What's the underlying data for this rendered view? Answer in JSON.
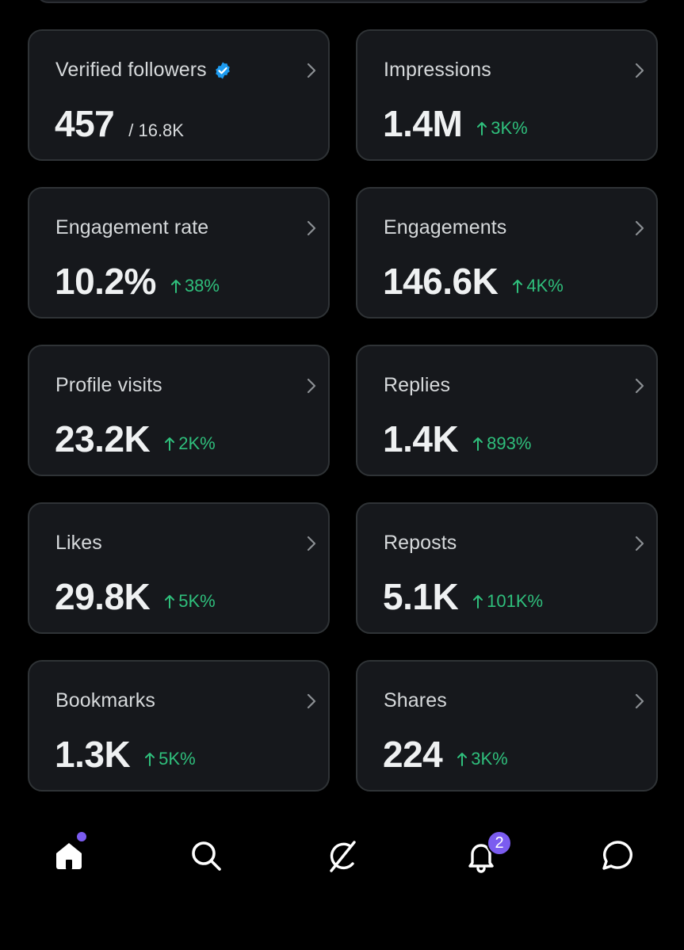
{
  "colors": {
    "background": "#000000",
    "card": "#16181c",
    "card_border": "#2f3336",
    "positive": "#2fbf7c",
    "accent": "#7b5cf0",
    "verified": "#1d9bf0"
  },
  "cards": [
    {
      "label": "Verified followers",
      "value": "457",
      "sub": "/ 16.8K",
      "change": "",
      "verified": true
    },
    {
      "label": "Impressions",
      "value": "1.4M",
      "sub": "",
      "change": "3K%"
    },
    {
      "label": "Engagement rate",
      "value": "10.2%",
      "sub": "",
      "change": "38%"
    },
    {
      "label": "Engagements",
      "value": "146.6K",
      "sub": "",
      "change": "4K%"
    },
    {
      "label": "Profile visits",
      "value": "23.2K",
      "sub": "",
      "change": "2K%"
    },
    {
      "label": "Replies",
      "value": "1.4K",
      "sub": "",
      "change": "893%"
    },
    {
      "label": "Likes",
      "value": "29.8K",
      "sub": "",
      "change": "5K%"
    },
    {
      "label": "Reposts",
      "value": "5.1K",
      "sub": "",
      "change": "101K%"
    },
    {
      "label": "Bookmarks",
      "value": "1.3K",
      "sub": "",
      "change": "5K%"
    },
    {
      "label": "Shares",
      "value": "224",
      "sub": "",
      "change": "3K%"
    }
  ],
  "nav": {
    "items": [
      {
        "name": "home",
        "icon": "home-icon",
        "has_dot": true
      },
      {
        "name": "search",
        "icon": "search-icon"
      },
      {
        "name": "grok",
        "icon": "grok-icon"
      },
      {
        "name": "notifications",
        "icon": "bell-icon",
        "badge": "2"
      },
      {
        "name": "messages",
        "icon": "chat-bubble-icon"
      }
    ],
    "notification_badge": "2"
  }
}
